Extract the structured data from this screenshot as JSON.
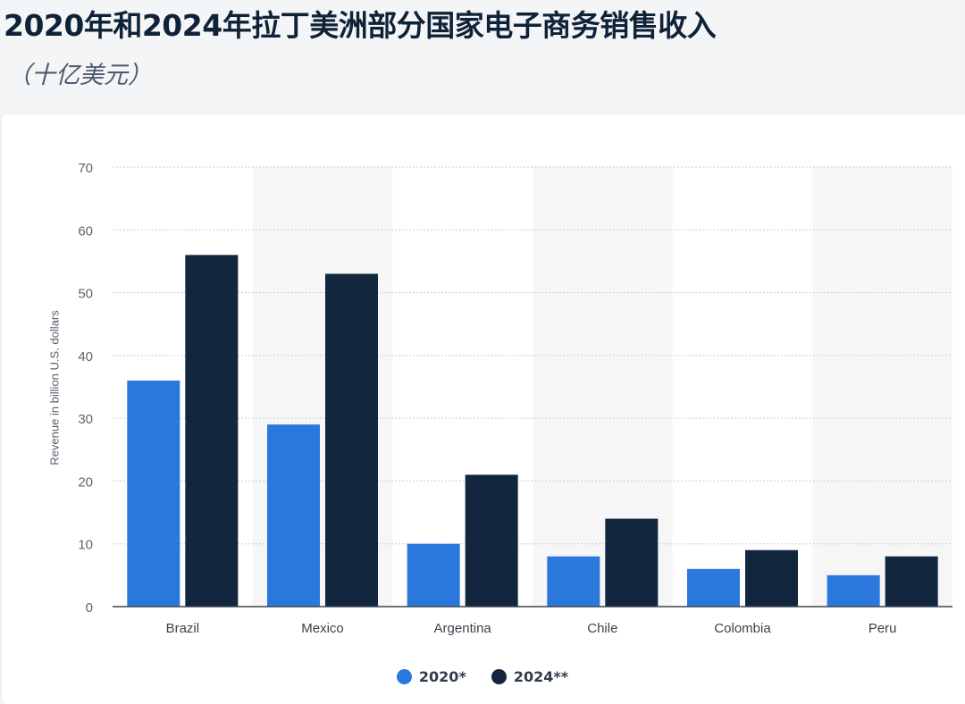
{
  "header": {
    "title": "2020年和2024年拉丁美洲部分国家电子商务销售收入",
    "subtitle": "（十亿美元）"
  },
  "colors": {
    "series_2020": "#2a78dc",
    "series_2024": "#12263e",
    "band": "#f6f6f7",
    "grid": "#c7ccd2"
  },
  "chart_data": {
    "type": "bar",
    "categories": [
      "Brazil",
      "Mexico",
      "Argentina",
      "Chile",
      "Colombia",
      "Peru"
    ],
    "series": [
      {
        "name": "2020*",
        "values": [
          36,
          29,
          10,
          8,
          6,
          5
        ]
      },
      {
        "name": "2024**",
        "values": [
          56,
          53,
          21,
          14,
          9,
          8
        ]
      }
    ],
    "xlabel": "",
    "ylabel": "Revenue in billion U.S. dollars",
    "ylim": [
      0,
      70
    ],
    "yticks": [
      0,
      10,
      20,
      30,
      40,
      50,
      60,
      70
    ],
    "grid": true,
    "legend": "bottom-center"
  },
  "legend": [
    {
      "label": "2020*"
    },
    {
      "label": "2024**"
    }
  ]
}
